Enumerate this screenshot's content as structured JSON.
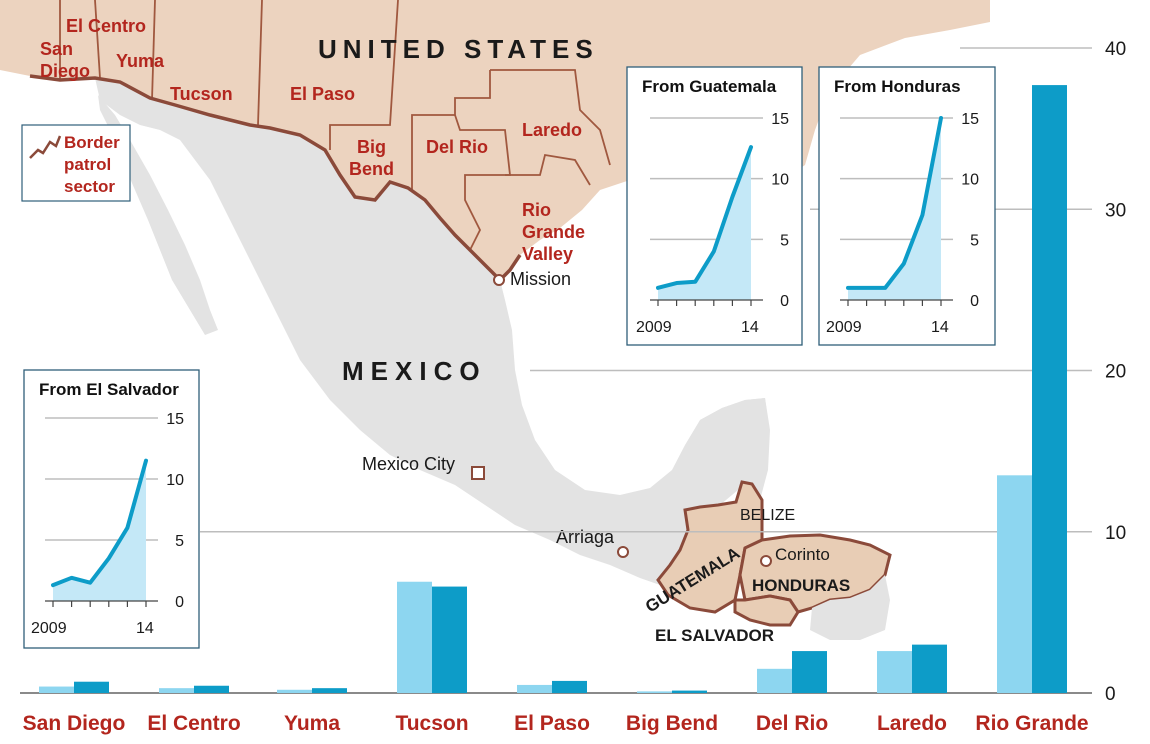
{
  "colors": {
    "usa": "#ecd3bf",
    "mexico": "#e3e3e3",
    "central_america": "#e8cdb5",
    "border": "#8b4a3a",
    "bar_light": "#8dd6f0",
    "bar_dark": "#0d9cc8",
    "line": "#0d9cc8",
    "area": "#c4e8f7",
    "label_red": "#b3261e",
    "gridline": "#bdbdbd",
    "frame": "#2f5f7a"
  },
  "map": {
    "country_usa": "UNITED STATES",
    "country_mexico": "MEXICO",
    "legend_line1": "Border",
    "legend_line2": "patrol",
    "legend_line3": "sector",
    "legend_icon": "border-line-icon",
    "sectors": [
      {
        "id": "el-centro",
        "lines": [
          "El Centro"
        ]
      },
      {
        "id": "san-diego",
        "lines": [
          "San",
          "Diego"
        ]
      },
      {
        "id": "yuma",
        "lines": [
          "Yuma"
        ]
      },
      {
        "id": "tucson",
        "lines": [
          "Tucson"
        ]
      },
      {
        "id": "el-paso",
        "lines": [
          "El Paso"
        ]
      },
      {
        "id": "big-bend",
        "lines": [
          "Big",
          "Bend"
        ]
      },
      {
        "id": "del-rio",
        "lines": [
          "Del Rio"
        ]
      },
      {
        "id": "laredo",
        "lines": [
          "Laredo"
        ]
      },
      {
        "id": "rio-grande-valley",
        "lines": [
          "Rio",
          "Grande",
          "Valley"
        ]
      }
    ],
    "places": {
      "mission": "Mission",
      "mexico_city": "Mexico City",
      "arriaga": "Arriaga",
      "corinto": "Corinto",
      "belize": "BELIZE",
      "guatemala": "GUATEMALA",
      "honduras": "HONDURAS",
      "el_salvador": "EL SALVADOR"
    }
  },
  "chart_data": [
    {
      "type": "bar",
      "categories": [
        "San Diego",
        "El Centro",
        "Yuma",
        "Tucson",
        "El Paso",
        "Big Bend",
        "Del Rio",
        "Laredo",
        "Rio Grande"
      ],
      "series": [
        {
          "values": [
            0.4,
            0.3,
            0.2,
            6.9,
            0.5,
            0.1,
            1.5,
            2.6,
            13.5
          ]
        },
        {
          "values": [
            0.7,
            0.45,
            0.3,
            6.6,
            0.75,
            0.15,
            2.6,
            3.0,
            37.7
          ]
        }
      ],
      "yticks": [
        0,
        10,
        20,
        30,
        40
      ],
      "ylim": [
        0,
        40
      ],
      "grid": true
    },
    {
      "type": "area",
      "title": "From Guatemala",
      "x": [
        2009,
        2010,
        2011,
        2012,
        2013,
        2014
      ],
      "values": [
        1.0,
        1.4,
        1.5,
        4.0,
        8.5,
        12.6
      ],
      "xticks": [
        "2009",
        "14"
      ],
      "yticks": [
        0,
        5,
        10,
        15
      ],
      "ylim": [
        0,
        15
      ]
    },
    {
      "type": "area",
      "title": "From Honduras",
      "x": [
        2009,
        2010,
        2011,
        2012,
        2013,
        2014
      ],
      "values": [
        1.0,
        1.0,
        1.0,
        3.0,
        7.0,
        15.0
      ],
      "xticks": [
        "2009",
        "14"
      ],
      "yticks": [
        0,
        5,
        10,
        15
      ],
      "ylim": [
        0,
        15
      ]
    },
    {
      "type": "area",
      "title": "From El Salvador",
      "x": [
        2009,
        2010,
        2011,
        2012,
        2013,
        2014
      ],
      "values": [
        1.3,
        1.9,
        1.5,
        3.5,
        6.0,
        11.5
      ],
      "xticks": [
        "2009",
        "14"
      ],
      "yticks": [
        0,
        5,
        10,
        15
      ],
      "ylim": [
        0,
        15
      ]
    }
  ]
}
